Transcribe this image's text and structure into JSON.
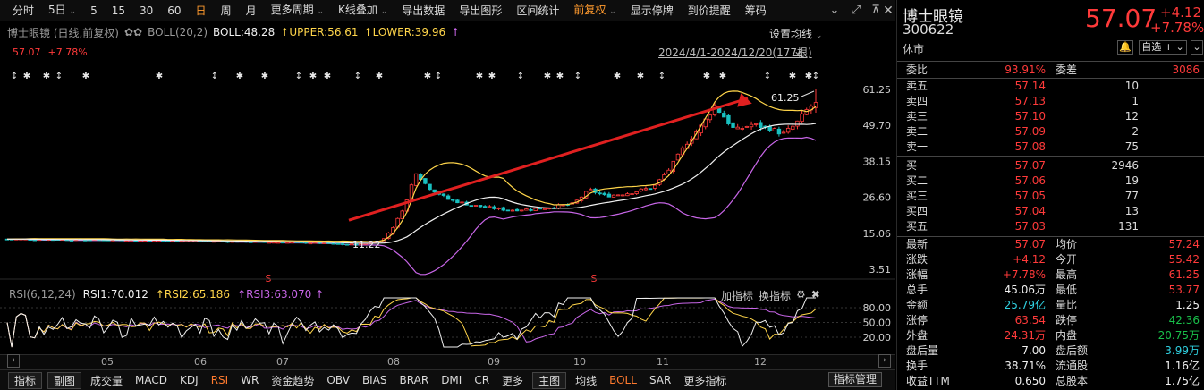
{
  "toolbar": {
    "items": [
      {
        "label": "分时",
        "active": false
      },
      {
        "label": "5日",
        "active": false,
        "dropdown": true
      },
      {
        "label": "5",
        "active": false
      },
      {
        "label": "15",
        "active": false
      },
      {
        "label": "30",
        "active": false
      },
      {
        "label": "60",
        "active": false
      },
      {
        "label": "日",
        "active": true
      },
      {
        "label": "周",
        "active": false
      },
      {
        "label": "月",
        "active": false
      },
      {
        "label": "更多周期",
        "active": false,
        "dropdown": true
      },
      {
        "label": "K线叠加",
        "active": false,
        "dropdown": true
      },
      {
        "label": "导出数据",
        "active": false
      },
      {
        "label": "导出图形",
        "active": false
      },
      {
        "label": "区间统计",
        "active": false
      },
      {
        "label": "前复权",
        "active": true,
        "dropdown": true
      },
      {
        "label": "显示停牌",
        "active": false
      },
      {
        "label": "到价提醒",
        "active": false
      },
      {
        "label": "筹码",
        "active": false
      }
    ],
    "window_icons": [
      "collapse-icon",
      "restore-icon",
      "pin-icon",
      "close-icon"
    ]
  },
  "boll_legend": {
    "name": "博士眼镜 (日线,前复权)",
    "indicator": "BOLL(20,2)",
    "boll": "BOLL:48.28",
    "upper": "UPPER:56.61",
    "lower": "LOWER:39.96",
    "colors": {
      "boll": "#f0f0f0",
      "upper": "#ffd54a",
      "lower": "#c866e8"
    }
  },
  "price_line": {
    "price": "57.07",
    "pct": "+7.78%"
  },
  "range_label": "2024/4/1-2024/12/20(177根)",
  "settings_label": "设置均线",
  "y_ticks": [
    "61.25",
    "49.70",
    "38.15",
    "26.60",
    "15.06",
    "3.51"
  ],
  "annotations": {
    "high": "61.25",
    "low": "11.22"
  },
  "x_labels": [
    "05",
    "06",
    "07",
    "08",
    "09",
    "10",
    "11",
    "12"
  ],
  "rsi_legend": {
    "title": "RSI(6,12,24)",
    "rsi1": "RSI1:70.012",
    "rsi2": "RSI2:65.186",
    "rsi3": "RSI3:63.070"
  },
  "rsi_ticks": [
    "80.00",
    "50.00",
    "20.00"
  ],
  "rsi_tools": [
    "加指标",
    "换指标"
  ],
  "bottom_bar": {
    "items": [
      {
        "label": "指标",
        "boxed": true
      },
      {
        "label": "副图",
        "boxed": true
      },
      {
        "label": "成交量"
      },
      {
        "label": "MACD"
      },
      {
        "label": "KDJ"
      },
      {
        "label": "RSI",
        "active": true
      },
      {
        "label": "WR"
      },
      {
        "label": "资金趋势"
      },
      {
        "label": "OBV"
      },
      {
        "label": "BIAS"
      },
      {
        "label": "BRAR"
      },
      {
        "label": "DMI"
      },
      {
        "label": "CR"
      },
      {
        "label": "更多"
      },
      {
        "label": "主图",
        "boxed": true
      },
      {
        "label": "均线"
      },
      {
        "label": "BOLL",
        "active": true
      },
      {
        "label": "SAR"
      },
      {
        "label": "更多指标"
      }
    ],
    "manage": "指标管理"
  },
  "quote": {
    "name": "博士眼镜",
    "code": "300622",
    "price": "57.07",
    "change": "+4.12",
    "pct": "+7.78%",
    "status": "休市",
    "watch_label": "自选 +",
    "webi": {
      "label": "委比",
      "value": "93.91%",
      "label2": "委差",
      "value2": "3086"
    },
    "asks": [
      {
        "label": "卖五",
        "price": "57.14",
        "vol": "10"
      },
      {
        "label": "卖四",
        "price": "57.13",
        "vol": "1"
      },
      {
        "label": "卖三",
        "price": "57.10",
        "vol": "12"
      },
      {
        "label": "卖二",
        "price": "57.09",
        "vol": "2"
      },
      {
        "label": "卖一",
        "price": "57.08",
        "vol": "75"
      }
    ],
    "bids": [
      {
        "label": "买一",
        "price": "57.07",
        "vol": "2946"
      },
      {
        "label": "买二",
        "price": "57.06",
        "vol": "19"
      },
      {
        "label": "买三",
        "price": "57.05",
        "vol": "77"
      },
      {
        "label": "买四",
        "price": "57.04",
        "vol": "13"
      },
      {
        "label": "买五",
        "price": "57.03",
        "vol": "131"
      }
    ],
    "stats": [
      {
        "l1": "最新",
        "v1": "57.07",
        "c1": "red",
        "l2": "均价",
        "v2": "57.24",
        "c2": "red"
      },
      {
        "l1": "涨跌",
        "v1": "+4.12",
        "c1": "red",
        "l2": "今开",
        "v2": "55.42",
        "c2": "red"
      },
      {
        "l1": "涨幅",
        "v1": "+7.78%",
        "c1": "red",
        "l2": "最高",
        "v2": "61.25",
        "c2": "red"
      },
      {
        "l1": "总手",
        "v1": "45.06万",
        "c1": "white",
        "l2": "最低",
        "v2": "53.77",
        "c2": "red"
      },
      {
        "l1": "金额",
        "v1": "25.79亿",
        "c1": "cyan",
        "l2": "量比",
        "v2": "1.25",
        "c2": "white"
      },
      {
        "l1": "涨停",
        "v1": "63.54",
        "c1": "red",
        "l2": "跌停",
        "v2": "42.36",
        "c2": "green"
      },
      {
        "l1": "外盘",
        "v1": "24.31万",
        "c1": "red",
        "l2": "内盘",
        "v2": "20.75万",
        "c2": "green"
      },
      {
        "l1": "盘后量",
        "v1": "7.00",
        "c1": "white",
        "l2": "盘后额",
        "v2": "3.99万",
        "c2": "cyan"
      },
      {
        "l1": "换手",
        "v1": "38.71%",
        "c1": "white",
        "l2": "流通股",
        "v2": "1.16亿",
        "c2": "white"
      },
      {
        "l1": "收益TTM",
        "v1": "0.650",
        "c1": "white",
        "l2": "总股本",
        "v2": "1.75亿",
        "c2": "white"
      }
    ]
  }
}
